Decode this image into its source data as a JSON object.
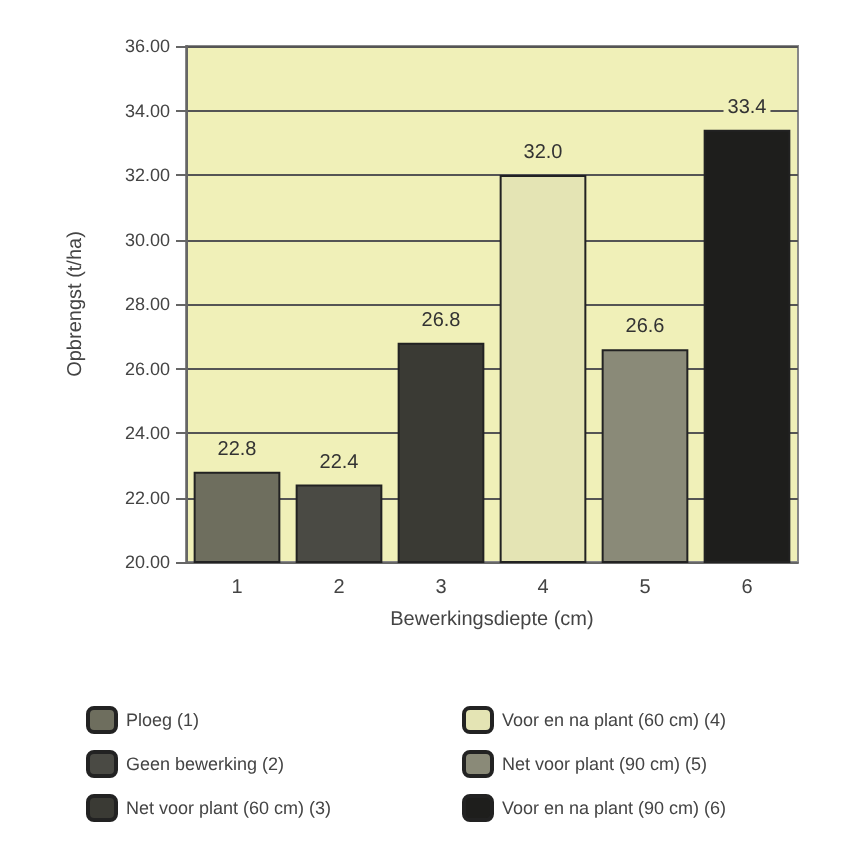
{
  "chart_data": {
    "type": "bar",
    "xlabel": "Bewerkingsdiepte (cm)",
    "ylabel": "Opbrengst (t/ha)",
    "categories": [
      "1",
      "2",
      "3",
      "4",
      "5",
      "6"
    ],
    "series": [
      {
        "name": "Ploeg (1)",
        "color": "#6e6e5e",
        "values": [
          22.8,
          null,
          null,
          null,
          null,
          null
        ],
        "value_labels": [
          "22.8",
          null,
          null,
          null,
          null,
          null
        ]
      },
      {
        "name": "Geen bewerking (2)",
        "color": "#4a4a44",
        "values": [
          null,
          22.4,
          null,
          null,
          null,
          null
        ],
        "value_labels": [
          null,
          "22.4",
          null,
          null,
          null,
          null
        ]
      },
      {
        "name": "Net voor plant (60 cm) (3)",
        "color": "#3a3a34",
        "values": [
          null,
          null,
          26.8,
          null,
          null,
          null
        ],
        "value_labels": [
          null,
          null,
          "26.8",
          null,
          null,
          null
        ]
      },
      {
        "name": "Voor en na plant (60 cm) (4)",
        "color": "#e4e4b4",
        "values": [
          null,
          null,
          null,
          32.0,
          null,
          null
        ],
        "value_labels": [
          null,
          null,
          null,
          "32.0",
          null,
          null
        ]
      },
      {
        "name": "Net voor plant (90 cm) (5)",
        "color": "#8a8a78",
        "values": [
          null,
          null,
          null,
          null,
          26.6,
          null
        ],
        "value_labels": [
          null,
          null,
          null,
          null,
          "26.6",
          null
        ]
      },
      {
        "name": "Voor en na plant (90 cm) (6)",
        "color": "#1e1e1c",
        "values": [
          null,
          null,
          null,
          null,
          null,
          33.4
        ],
        "value_labels": [
          null,
          null,
          null,
          null,
          null,
          "33.4"
        ]
      }
    ],
    "ylim": [
      20,
      36
    ],
    "yticks": [
      {
        "value": 20,
        "label": "20.00"
      },
      {
        "value": 22,
        "label": "22.00"
      },
      {
        "value": 24,
        "label": "24.00"
      },
      {
        "value": 26,
        "label": "26.00"
      },
      {
        "value": 28,
        "label": "28.00"
      },
      {
        "value": 30,
        "label": "30.00"
      },
      {
        "value": 32,
        "label": "32.00"
      },
      {
        "value": 34,
        "label": "34.00"
      },
      {
        "value": 36,
        "label": "36.00"
      }
    ],
    "grid": "y",
    "legend": "bottom"
  }
}
